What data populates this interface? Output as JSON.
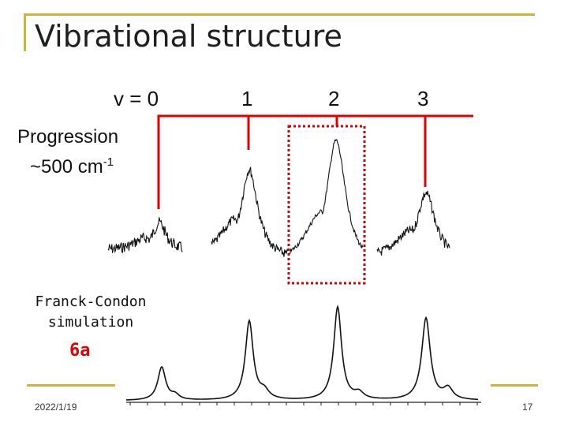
{
  "slide": {
    "title": "Vibrational structure",
    "vibrational_levels": [
      "v = 0",
      "1",
      "2",
      "3"
    ],
    "progression_label": "Progression",
    "progression_value": "~500 cm",
    "progression_exponent": "-1",
    "simulation_label_line1": "Franck-Condon",
    "simulation_label_line2": "simulation",
    "mode_label": "6a",
    "date": "2022/1/19",
    "page_number": "17"
  },
  "colors": {
    "frame": "#c9b63a",
    "marker": "#e00000",
    "text": "#111111"
  }
}
